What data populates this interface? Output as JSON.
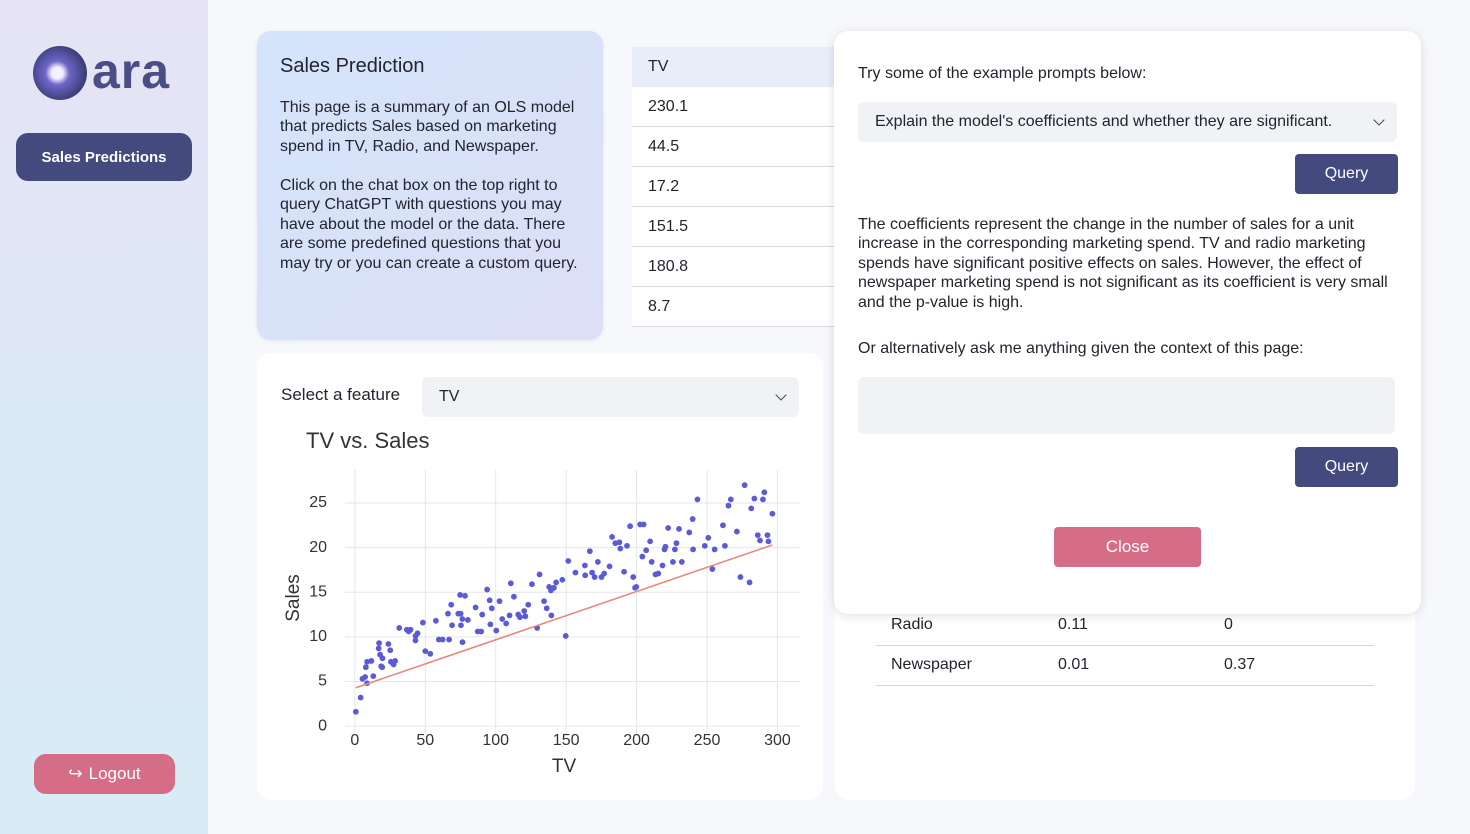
{
  "sidebar": {
    "logo": "ara",
    "nav": [
      "Sales Predictions"
    ],
    "logout": "Logout"
  },
  "summary": {
    "title": "Sales Prediction",
    "paragraphs": [
      "This page is a summary of an OLS model that predicts Sales based on marketing spend in TV, Radio, and Newspaper.",
      "Click on the chat box on the top right to query ChatGPT with questions you may have about the model or the data. There are some predefined questions that you may try or you can create a custom query."
    ]
  },
  "data_table": {
    "header": "TV",
    "rows": [
      "230.1",
      "44.5",
      "17.2",
      "151.5",
      "180.8",
      "8.7"
    ]
  },
  "coef_table": {
    "rows": [
      [
        "Radio",
        "0.11",
        "0"
      ],
      [
        "Newspaper",
        "0.01",
        "0.37"
      ]
    ]
  },
  "feature_select": {
    "label": "Select a feature",
    "value": "TV"
  },
  "chart_data": {
    "type": "scatter",
    "title": "TV vs. Sales",
    "x_label": "TV",
    "y_label": "Sales",
    "xlim": [
      -7,
      316
    ],
    "ylim": [
      -1,
      28.7
    ],
    "xticks": [
      0,
      50,
      100,
      150,
      200,
      250,
      300
    ],
    "yticks": [
      0,
      5,
      10,
      15,
      20,
      25
    ],
    "grid": true,
    "series": [
      {
        "mode": "markers",
        "color": "#5b5bd6",
        "x": [
          0.7,
          4.1,
          5.4,
          7.3,
          7.8,
          8.6,
          8.7,
          11.7,
          13.1,
          16.9,
          17.2,
          18.7,
          19.4,
          17.9,
          19.6,
          23.8,
          25.1,
          25.6,
          27.5,
          28.6,
          31.5,
          36.9,
          38.2,
          39.5,
          43,
          44.5,
          43.1,
          48.3,
          50,
          53.5,
          57.5,
          59.6,
          62.3,
          66.1,
          66.9,
          68.4,
          69,
          73.4,
          74.7,
          75.1,
          75.3,
          76.3,
          76.4,
          78.2,
          80.2,
          85.7,
          87.2,
          89.7,
          90.4,
          93.9,
          95.7,
          96.2,
          97.2,
          100.4,
          102.7,
          104.6,
          107.4,
          109.8,
          110.7,
          112.9,
          116,
          117.2,
          120.2,
          121,
          123.1,
          125.7,
          129.4,
          131.1,
          134.3,
          136.2,
          137.9,
          139.2,
          139.5,
          141.3,
          142.9,
          147.3,
          149.7,
          151.5,
          156.6,
          163.3,
          163.5,
          166.8,
          168.4,
          170.2,
          172.5,
          175.1,
          177,
          180.8,
          182.6,
          184.9,
          187.8,
          188.4,
          191.1,
          193.2,
          195.4,
          197.6,
          198.9,
          199.8,
          202.5,
          204.1,
          205,
          206.8,
          209.6,
          210.7,
          213.4,
          215.4,
          218.4,
          219.8,
          220.5,
          222.4,
          225.8,
          227.2,
          228.3,
          230.1,
          232.1,
          237.4,
          239.8,
          240.1,
          243.2,
          248.4,
          250.9,
          253.8,
          255.4,
          261.3,
          262.7,
          265.2,
          266.9,
          271.2,
          273.7,
          276.7,
          280.2,
          281.4,
          283.6,
          286,
          287.6,
          289.7,
          290.7,
          292.9,
          293.6,
          296.4
        ],
        "y": [
          1.6,
          3.2,
          5.3,
          5.5,
          6.6,
          4.8,
          7.2,
          7.3,
          5.6,
          8.7,
          9.3,
          6.7,
          6.6,
          8,
          7.6,
          9.2,
          8.5,
          7.2,
          6.9,
          7.3,
          11,
          10.8,
          10.6,
          10.8,
          9.6,
          10.4,
          10.1,
          11.6,
          8.4,
          8.1,
          11.8,
          9.7,
          9.7,
          12.6,
          9.7,
          13.6,
          11.3,
          12.6,
          14.7,
          12.6,
          11.3,
          12,
          9.4,
          14.6,
          11.9,
          13.3,
          10.6,
          10.6,
          12.5,
          15.3,
          14.1,
          11.4,
          13.2,
          10.7,
          14,
          12,
          11.5,
          12.4,
          16,
          14.5,
          12.5,
          12.2,
          12.9,
          12.3,
          13.6,
          15.9,
          11,
          17,
          14,
          13.2,
          15.6,
          15.2,
          12.4,
          15.5,
          16.1,
          16.4,
          10.1,
          18.5,
          17.2,
          18,
          16.9,
          19.6,
          17.2,
          16.7,
          18.4,
          16.7,
          17.1,
          17.9,
          21.2,
          20.5,
          20.6,
          19.9,
          17.3,
          20.2,
          22.4,
          16.7,
          15.5,
          15.6,
          22.6,
          19,
          22.6,
          19.7,
          20.7,
          18.4,
          17,
          17.1,
          18,
          19.8,
          20.1,
          22.2,
          18.4,
          19.8,
          20.5,
          22.1,
          18.4,
          21.7,
          23.2,
          19.8,
          25.4,
          20.2,
          21.1,
          17.6,
          19.8,
          22.5,
          20.2,
          24.7,
          25.4,
          21.8,
          16.7,
          27,
          16.1,
          24.4,
          25.5,
          21.4,
          20.8,
          25.4,
          26.2,
          21.4,
          20.7,
          23.8
        ]
      },
      {
        "mode": "lines",
        "color": "#e8877a",
        "x": [
          0.7,
          296.4
        ],
        "y": [
          4.3,
          20.3
        ]
      }
    ]
  },
  "chat": {
    "prompt_label": "Try some of the example prompts below:",
    "selected_prompt": "Explain the model's coefficients and whether they are significant.",
    "query_buttons": [
      "Query",
      "Query"
    ],
    "answer": "The coefficients represent the change in the number of sales for a unit increase in the corresponding marketing spend. TV and radio marketing spends have significant positive effects on sales. However, the effect of newspaper marketing spend is not significant as its coefficient is very small and the p-value is high.",
    "alt_label": "Or alternatively ask me anything given the context of this page:",
    "close": "Close"
  }
}
